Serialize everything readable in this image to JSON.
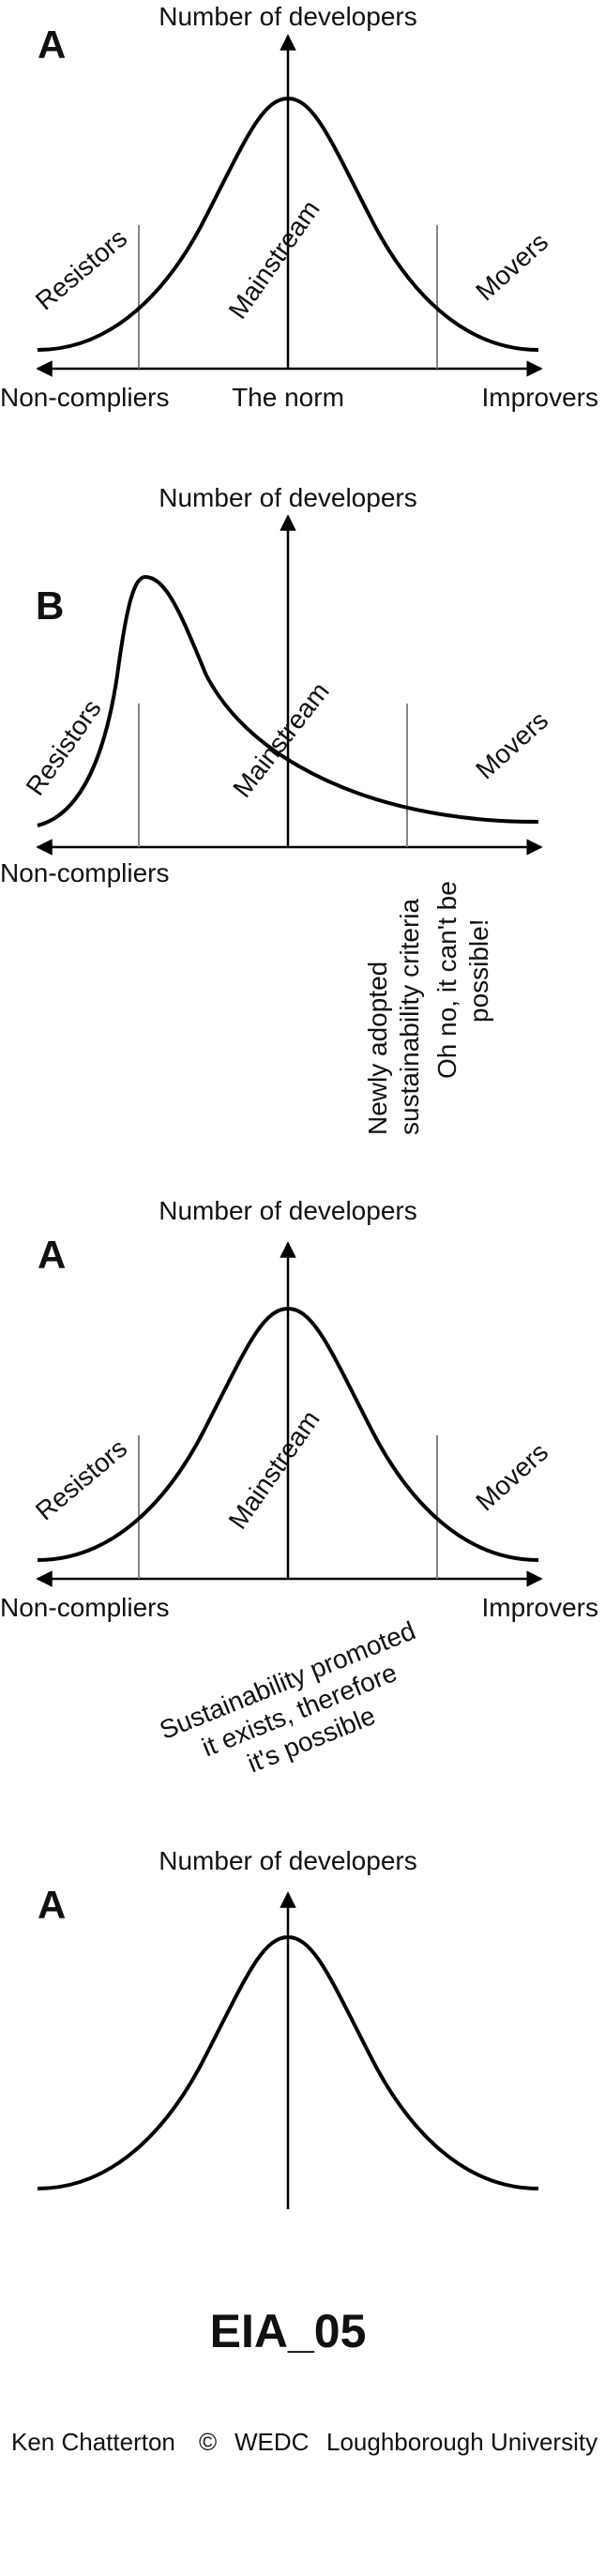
{
  "panels": [
    {
      "letter": "A",
      "y_axis_label": "Number of developers",
      "segments": [
        "Resistors",
        "Mainstream",
        "Movers"
      ],
      "x_left_label": "Non-compliers",
      "x_center_label": "The norm",
      "x_right_label": "Improvers"
    },
    {
      "letter": "B",
      "y_axis_label": "Number of developers",
      "segments": [
        "Resistors",
        "Mainstream",
        "Movers"
      ],
      "x_left_label": "Non-compliers",
      "note_lines": [
        "Newly adopted",
        "sustainability criteria",
        "Oh no, it can't be",
        "possible!"
      ]
    },
    {
      "letter": "A",
      "y_axis_label": "Number of developers",
      "segments": [
        "Resistors",
        "Mainstream",
        "Movers"
      ],
      "x_left_label": "Non-compliers",
      "x_right_label": "Improvers",
      "note_lines": [
        "Sustainability promoted",
        "it exists, therefore",
        "it's possible"
      ]
    },
    {
      "letter": "A",
      "y_axis_label": "Number of developers"
    }
  ],
  "title": "EIA_05",
  "footer": {
    "author": "Ken Chatterton",
    "copyright": "©",
    "org": "WEDC",
    "university": "Loughborough University"
  }
}
